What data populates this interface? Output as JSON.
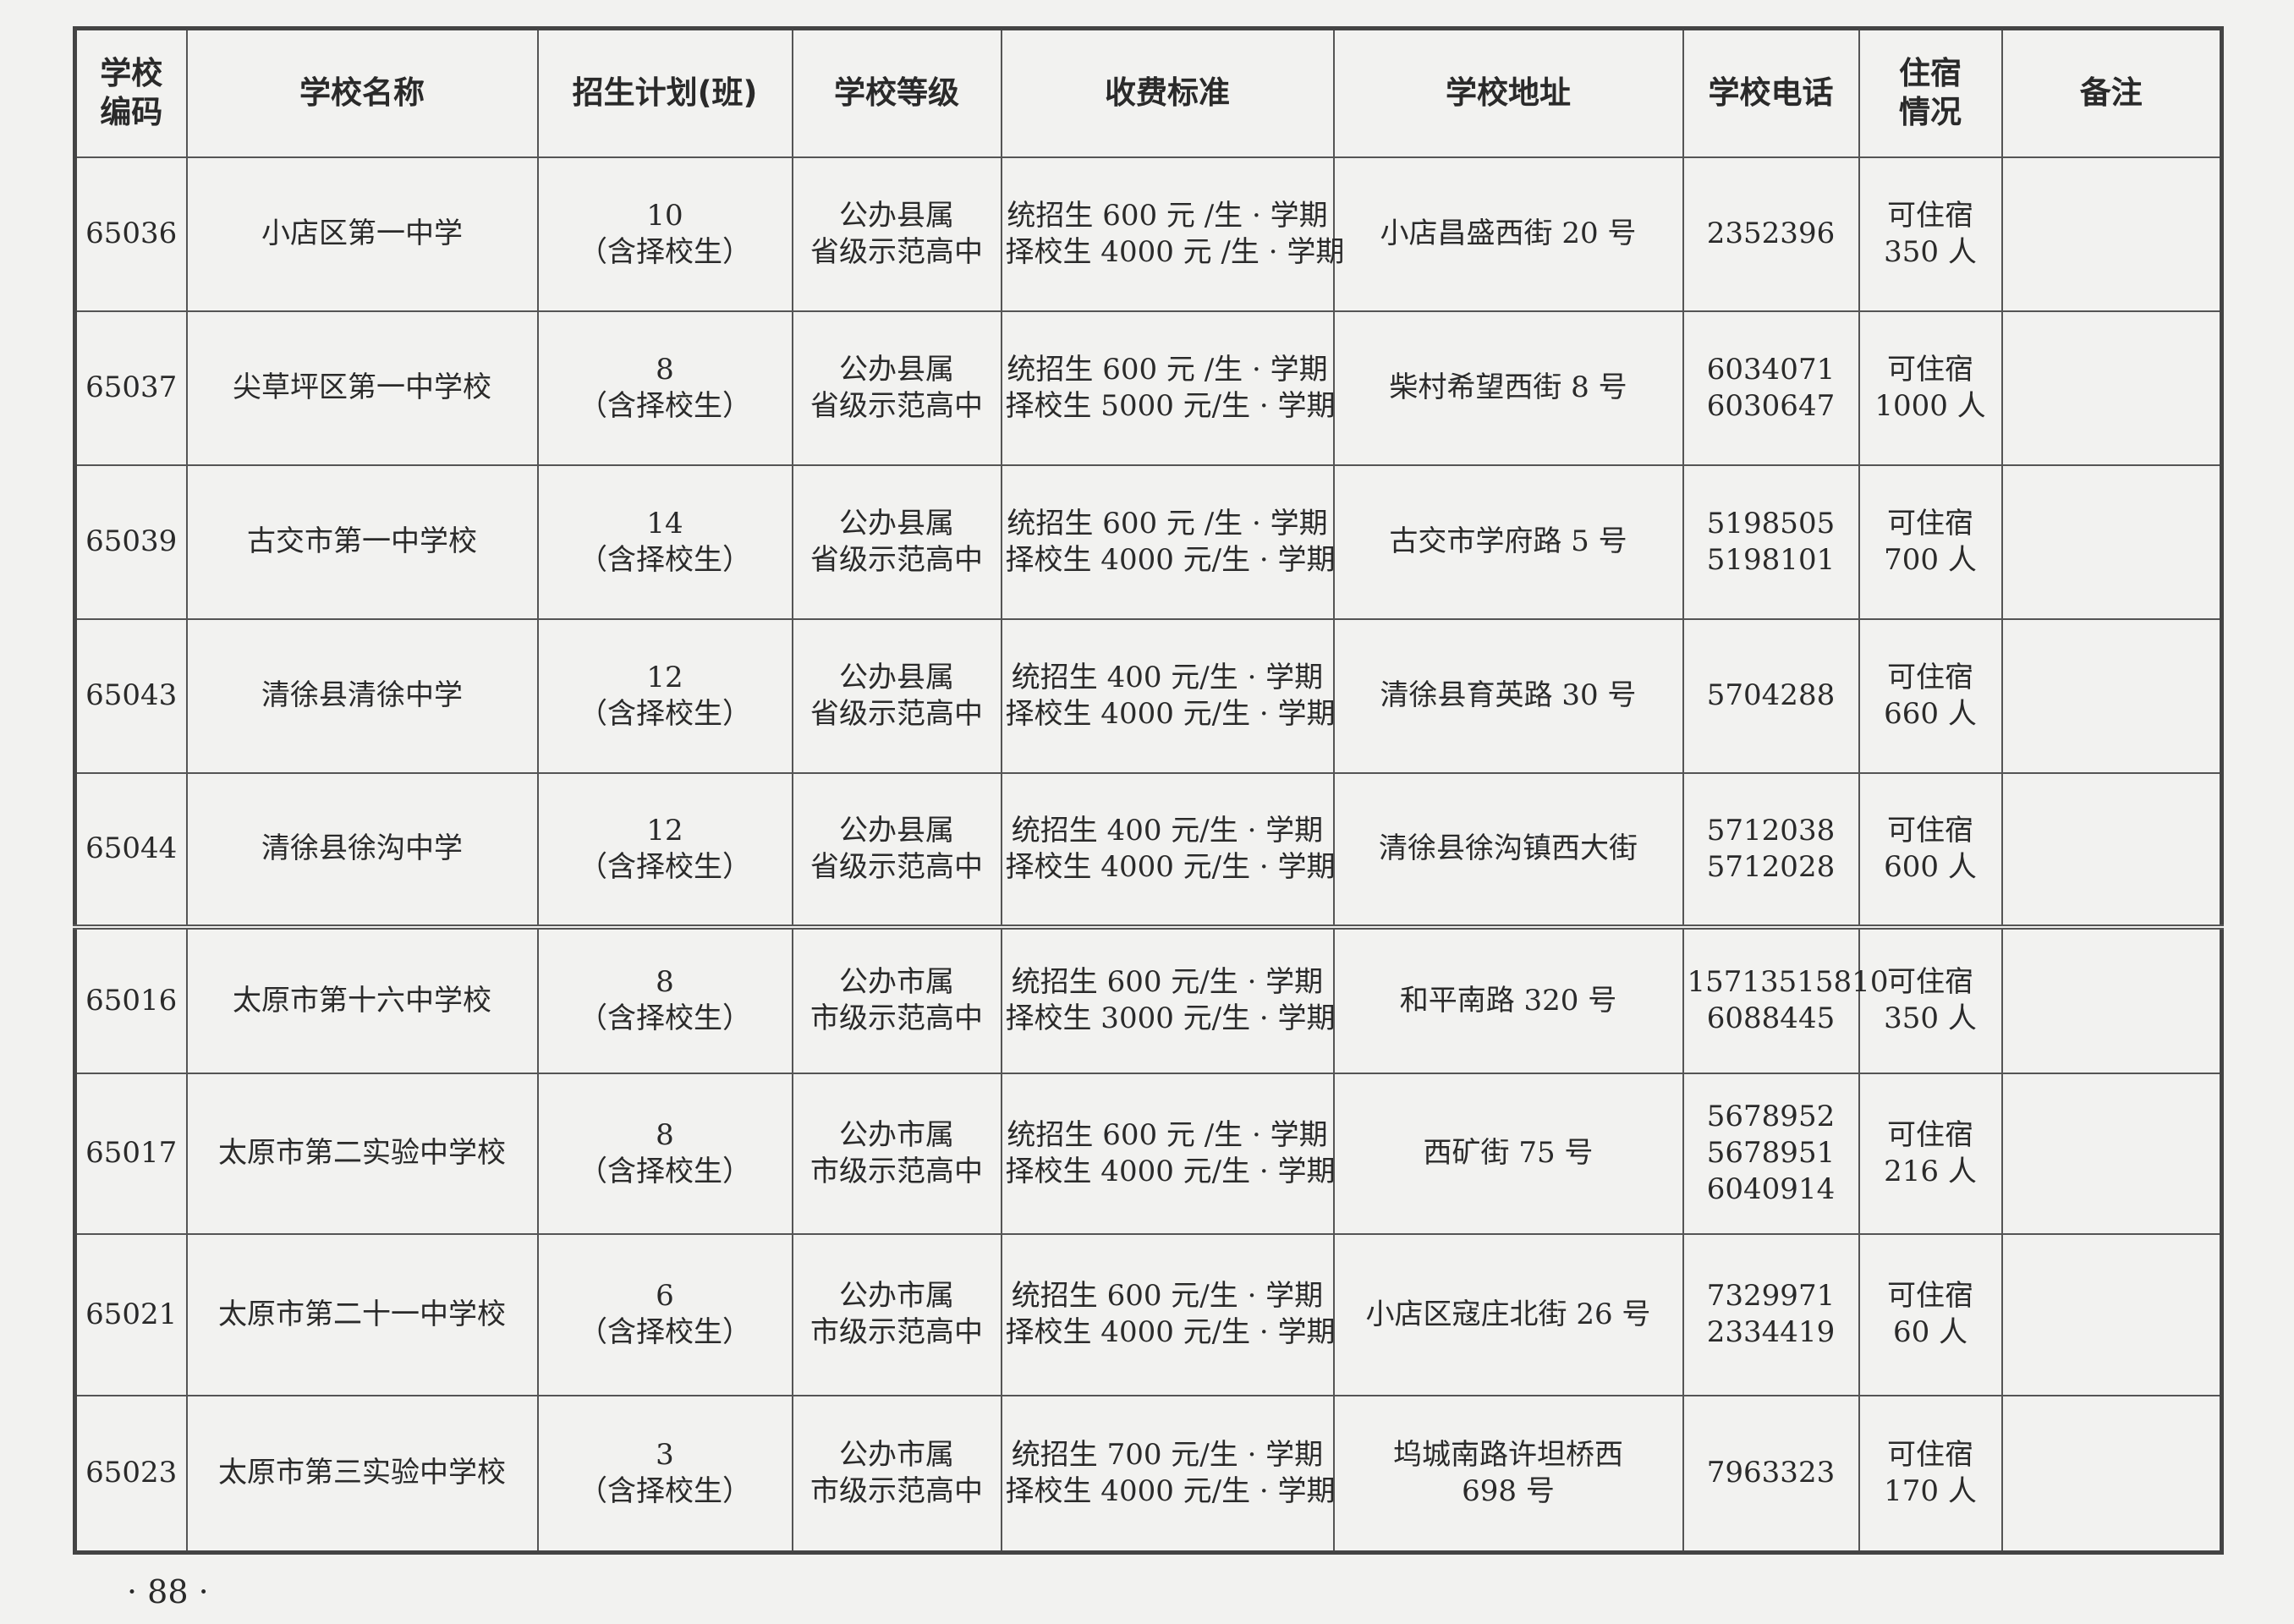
{
  "table": {
    "headers": [
      [
        "学校",
        "编码"
      ],
      [
        "学校名称"
      ],
      [
        "招生计划(班)"
      ],
      [
        "学校等级"
      ],
      [
        "收费标准"
      ],
      [
        "学校地址"
      ],
      [
        "学校电话"
      ],
      [
        "住宿",
        "情况"
      ],
      [
        "备注"
      ]
    ],
    "rows": [
      {
        "code": "65036",
        "name": "小店区第一中学",
        "plan": [
          "10",
          "（含择校生）"
        ],
        "level": [
          "公办县属",
          "省级示范高中"
        ],
        "fee": [
          "统招生 600 元 /生 · 学期",
          "择校生 4000 元 /生 · 学期"
        ],
        "address": [
          "小店昌盛西街 20 号"
        ],
        "phone": [
          "2352396"
        ],
        "lodging": [
          "可住宿",
          "350 人"
        ],
        "note": ""
      },
      {
        "code": "65037",
        "name": "尖草坪区第一中学校",
        "plan": [
          "8",
          "（含择校生）"
        ],
        "level": [
          "公办县属",
          "省级示范高中"
        ],
        "fee": [
          "统招生 600 元 /生 · 学期",
          "择校生 5000 元/生 · 学期"
        ],
        "address": [
          "柴村希望西街 8 号"
        ],
        "phone": [
          "6034071",
          "6030647"
        ],
        "lodging": [
          "可住宿",
          "1000 人"
        ],
        "note": ""
      },
      {
        "code": "65039",
        "name": "古交市第一中学校",
        "plan": [
          "14",
          "（含择校生）"
        ],
        "level": [
          "公办县属",
          "省级示范高中"
        ],
        "fee": [
          "统招生 600 元 /生 · 学期",
          "择校生 4000 元/生 · 学期"
        ],
        "address": [
          "古交市学府路 5 号"
        ],
        "phone": [
          "5198505",
          "5198101"
        ],
        "lodging": [
          "可住宿",
          "700 人"
        ],
        "note": ""
      },
      {
        "code": "65043",
        "name": "清徐县清徐中学",
        "plan": [
          "12",
          "（含择校生）"
        ],
        "level": [
          "公办县属",
          "省级示范高中"
        ],
        "fee": [
          "统招生 400 元/生 · 学期",
          "择校生 4000 元/生 · 学期"
        ],
        "address": [
          "清徐县育英路 30 号"
        ],
        "phone": [
          "5704288"
        ],
        "lodging": [
          "可住宿",
          "660 人"
        ],
        "note": ""
      },
      {
        "code": "65044",
        "name": "清徐县徐沟中学",
        "plan": [
          "12",
          "（含择校生）"
        ],
        "level": [
          "公办县属",
          "省级示范高中"
        ],
        "fee": [
          "统招生 400 元/生 · 学期",
          "择校生 4000 元/生 · 学期"
        ],
        "address": [
          "清徐县徐沟镇西大街"
        ],
        "phone": [
          "5712038",
          "5712028"
        ],
        "lodging": [
          "可住宿",
          "600 人"
        ],
        "note": ""
      },
      {
        "code": "65016",
        "name": "太原市第十六中学校",
        "plan": [
          "8",
          "（含择校生）"
        ],
        "level": [
          "公办市属",
          "市级示范高中"
        ],
        "fee": [
          "统招生 600 元/生 · 学期",
          "择校生 3000 元/生 · 学期"
        ],
        "address": [
          "和平南路 320 号"
        ],
        "phone": [
          "15713515810",
          "6088445"
        ],
        "lodging": [
          "可住宿",
          "350 人"
        ],
        "note": ""
      },
      {
        "code": "65017",
        "name": "太原市第二实验中学校",
        "plan": [
          "8",
          "（含择校生）"
        ],
        "level": [
          "公办市属",
          "市级示范高中"
        ],
        "fee": [
          "统招生 600 元 /生 · 学期",
          "择校生 4000 元/生 · 学期"
        ],
        "address": [
          "西矿街 75 号"
        ],
        "phone": [
          "5678952",
          "5678951",
          "6040914"
        ],
        "lodging": [
          "可住宿",
          "216 人"
        ],
        "note": ""
      },
      {
        "code": "65021",
        "name": "太原市第二十一中学校",
        "plan": [
          "6",
          "（含择校生）"
        ],
        "level": [
          "公办市属",
          "市级示范高中"
        ],
        "fee": [
          "统招生 600 元/生 · 学期",
          "择校生 4000 元/生 · 学期"
        ],
        "address": [
          "小店区寇庄北街 26 号"
        ],
        "phone": [
          "7329971",
          "2334419"
        ],
        "lodging": [
          "可住宿",
          "60 人"
        ],
        "note": ""
      },
      {
        "code": "65023",
        "name": "太原市第三实验中学校",
        "plan": [
          "3",
          "（含择校生）"
        ],
        "level": [
          "公办市属",
          "市级示范高中"
        ],
        "fee": [
          "统招生 700 元/生 · 学期",
          "择校生 4000 元/生 · 学期"
        ],
        "address": [
          "坞城南路许坦桥西",
          "698 号"
        ],
        "phone": [
          "7963323"
        ],
        "lodging": [
          "可住宿",
          "170 人"
        ],
        "note": ""
      }
    ]
  },
  "page_number": "· 88 ·"
}
